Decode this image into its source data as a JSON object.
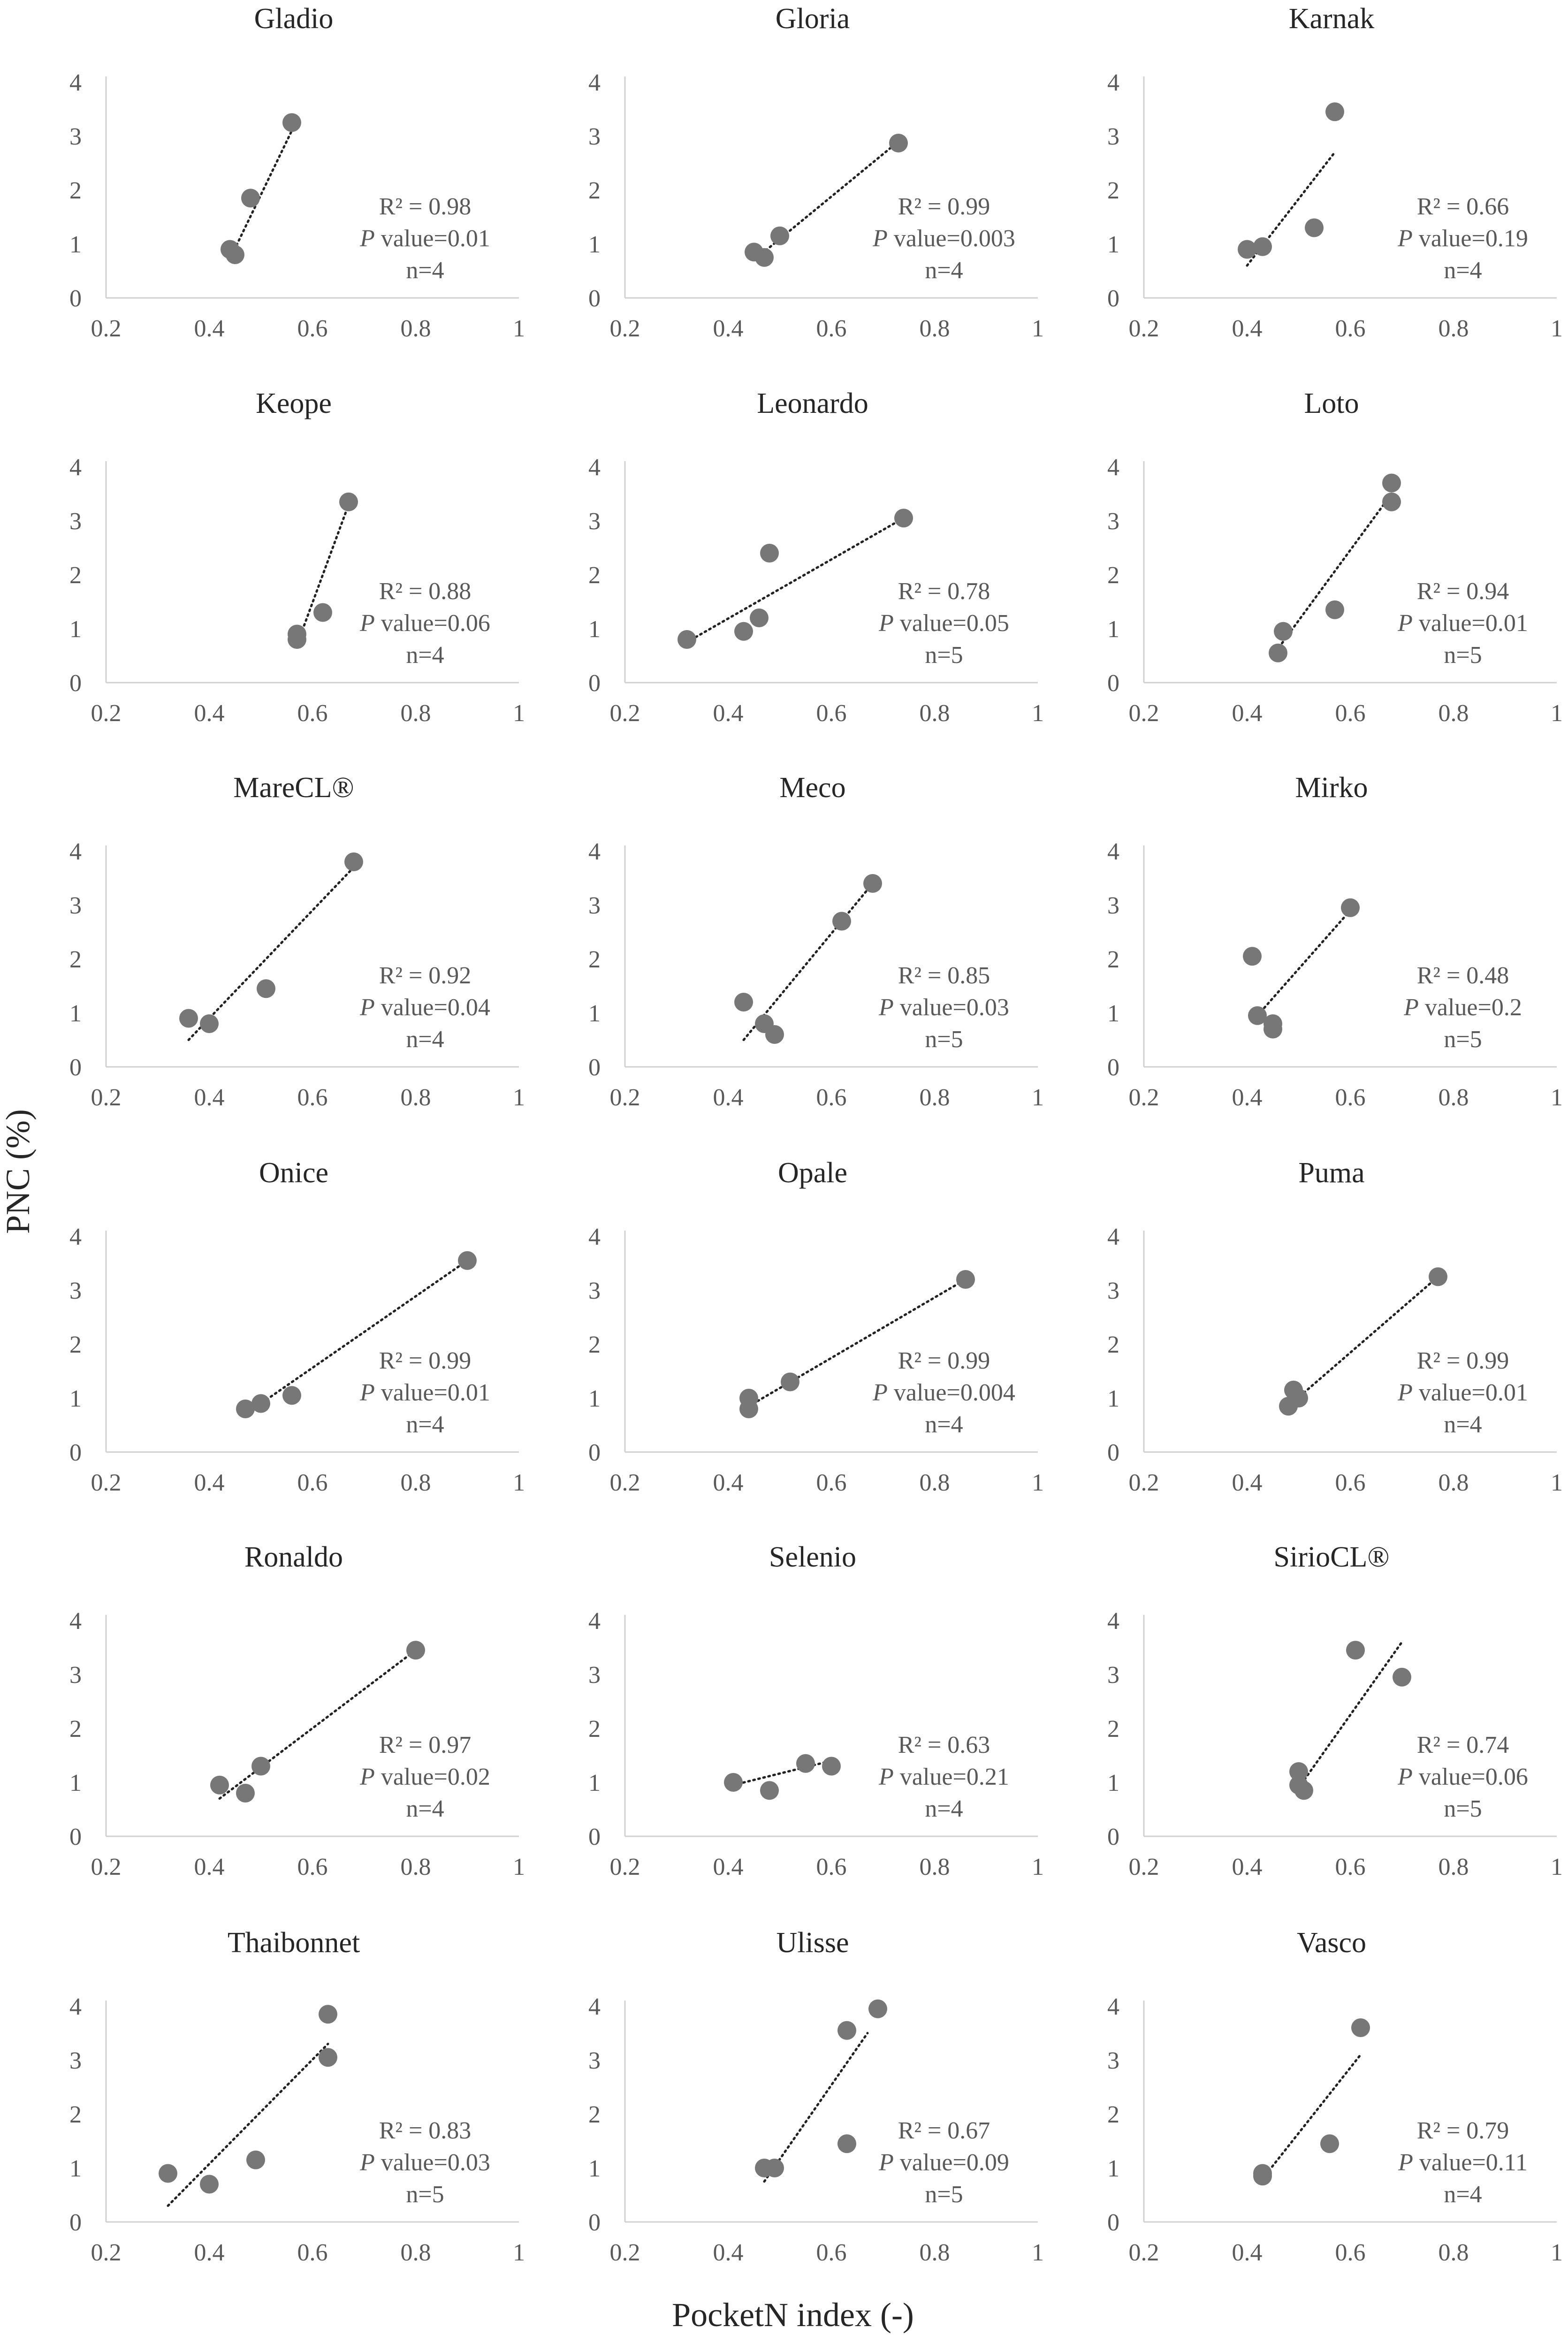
{
  "figure": {
    "y_axis_title": "PNC (%)",
    "x_axis_title": "PocketN index (-)"
  },
  "chart_data": [
    {
      "type": "scatter",
      "title": "Gladio",
      "x_ticks": [
        "0.2",
        "0.4",
        "0.6",
        "0.8",
        "1"
      ],
      "y_ticks": [
        "0",
        "1",
        "2",
        "3",
        "4"
      ],
      "xlim": [
        0.2,
        1.0
      ],
      "ylim": [
        0,
        4
      ],
      "series": [
        {
          "x": [
            0.56,
            0.48,
            0.44,
            0.45
          ],
          "y": [
            3.25,
            1.85,
            0.9,
            0.8
          ]
        }
      ],
      "trendline": {
        "x": [
          0.44,
          0.565
        ],
        "y": [
          0.72,
          3.2
        ],
        "style": "dotted"
      },
      "stats": {
        "r2": "R² = 0.98",
        "p_label": "P",
        "p_rest": " value=0.01",
        "n": "n=4"
      }
    },
    {
      "type": "scatter",
      "title": "Gloria",
      "x_ticks": [
        "0.2",
        "0.4",
        "0.6",
        "0.8",
        "1"
      ],
      "y_ticks": [
        "0",
        "1",
        "2",
        "3",
        "4"
      ],
      "xlim": [
        0.2,
        1.0
      ],
      "ylim": [
        0,
        4
      ],
      "series": [
        {
          "x": [
            0.73,
            0.5,
            0.45,
            0.47
          ],
          "y": [
            2.87,
            1.15,
            0.85,
            0.75
          ]
        }
      ],
      "trendline": {
        "x": [
          0.45,
          0.73
        ],
        "y": [
          0.7,
          2.9
        ],
        "style": "dotted"
      },
      "stats": {
        "r2": "R² = 0.99",
        "p_label": "P",
        "p_rest": " value=0.003",
        "n": "n=4"
      }
    },
    {
      "type": "scatter",
      "title": "Karnak",
      "x_ticks": [
        "0.2",
        "0.4",
        "0.6",
        "0.8",
        "1"
      ],
      "y_ticks": [
        "0",
        "1",
        "2",
        "3",
        "4"
      ],
      "xlim": [
        0.2,
        1.0
      ],
      "ylim": [
        0,
        4
      ],
      "series": [
        {
          "x": [
            0.57,
            0.53,
            0.43,
            0.4
          ],
          "y": [
            3.45,
            1.3,
            0.95,
            0.9
          ]
        }
      ],
      "trendline": {
        "x": [
          0.4,
          0.57
        ],
        "y": [
          0.6,
          2.7
        ],
        "style": "dotted"
      },
      "stats": {
        "r2": "R² = 0.66",
        "p_label": "P",
        "p_rest": " value=0.19",
        "n": "n=4"
      }
    },
    {
      "type": "scatter",
      "title": "Keope",
      "x_ticks": [
        "0.2",
        "0.4",
        "0.6",
        "0.8",
        "1"
      ],
      "y_ticks": [
        "0",
        "1",
        "2",
        "3",
        "4"
      ],
      "xlim": [
        0.2,
        1.0
      ],
      "ylim": [
        0,
        4
      ],
      "series": [
        {
          "x": [
            0.67,
            0.62,
            0.57,
            0.57
          ],
          "y": [
            3.35,
            1.3,
            0.9,
            0.8
          ]
        }
      ],
      "trendline": {
        "x": [
          0.57,
          0.67
        ],
        "y": [
          0.7,
          3.3
        ],
        "style": "dotted"
      },
      "stats": {
        "r2": "R² = 0.88",
        "p_label": "P",
        "p_rest": " value=0.06",
        "n": "n=4"
      }
    },
    {
      "type": "scatter",
      "title": "Leonardo",
      "x_ticks": [
        "0.2",
        "0.4",
        "0.6",
        "0.8",
        "1"
      ],
      "y_ticks": [
        "0",
        "1",
        "2",
        "3",
        "4"
      ],
      "xlim": [
        0.2,
        1.0
      ],
      "ylim": [
        0,
        4
      ],
      "series": [
        {
          "x": [
            0.74,
            0.48,
            0.46,
            0.43,
            0.32
          ],
          "y": [
            3.05,
            2.4,
            1.2,
            0.95,
            0.8
          ]
        }
      ],
      "trendline": {
        "x": [
          0.32,
          0.74
        ],
        "y": [
          0.75,
          3.05
        ],
        "style": "dotted"
      },
      "stats": {
        "r2": "R² = 0.78",
        "p_label": "P",
        "p_rest": " value=0.05",
        "n": "n=5"
      }
    },
    {
      "type": "scatter",
      "title": "Loto",
      "x_ticks": [
        "0.2",
        "0.4",
        "0.6",
        "0.8",
        "1"
      ],
      "y_ticks": [
        "0",
        "1",
        "2",
        "3",
        "4"
      ],
      "xlim": [
        0.2,
        1.0
      ],
      "ylim": [
        0,
        4
      ],
      "series": [
        {
          "x": [
            0.68,
            0.68,
            0.57,
            0.47,
            0.46
          ],
          "y": [
            3.7,
            3.35,
            1.35,
            0.95,
            0.55
          ]
        }
      ],
      "trendline": {
        "x": [
          0.45,
          0.68
        ],
        "y": [
          0.5,
          3.5
        ],
        "style": "dotted"
      },
      "stats": {
        "r2": "R² = 0.94",
        "p_label": "P",
        "p_rest": " value=0.01",
        "n": "n=5"
      }
    },
    {
      "type": "scatter",
      "title": "MareCL®",
      "x_ticks": [
        "0.2",
        "0.4",
        "0.6",
        "0.8",
        "1"
      ],
      "y_ticks": [
        "0",
        "1",
        "2",
        "3",
        "4"
      ],
      "xlim": [
        0.2,
        1.0
      ],
      "ylim": [
        0,
        4
      ],
      "series": [
        {
          "x": [
            0.68,
            0.51,
            0.36,
            0.4
          ],
          "y": [
            3.8,
            1.45,
            0.9,
            0.8
          ]
        }
      ],
      "trendline": {
        "x": [
          0.36,
          0.68
        ],
        "y": [
          0.5,
          3.7
        ],
        "style": "dotted"
      },
      "stats": {
        "r2": "R² = 0.92",
        "p_label": "P",
        "p_rest": " value=0.04",
        "n": "n=4"
      }
    },
    {
      "type": "scatter",
      "title": "Meco",
      "x_ticks": [
        "0.2",
        "0.4",
        "0.6",
        "0.8",
        "1"
      ],
      "y_ticks": [
        "0",
        "1",
        "2",
        "3",
        "4"
      ],
      "xlim": [
        0.2,
        1.0
      ],
      "ylim": [
        0,
        4
      ],
      "series": [
        {
          "x": [
            0.68,
            0.62,
            0.43,
            0.47,
            0.49
          ],
          "y": [
            3.4,
            2.7,
            1.2,
            0.8,
            0.6
          ]
        }
      ],
      "trendline": {
        "x": [
          0.43,
          0.68
        ],
        "y": [
          0.5,
          3.4
        ],
        "style": "dotted"
      },
      "stats": {
        "r2": "R² = 0.85",
        "p_label": "P",
        "p_rest": " value=0.03",
        "n": "n=5"
      }
    },
    {
      "type": "scatter",
      "title": "Mirko",
      "x_ticks": [
        "0.2",
        "0.4",
        "0.6",
        "0.8",
        "1"
      ],
      "y_ticks": [
        "0",
        "1",
        "2",
        "3",
        "4"
      ],
      "xlim": [
        0.2,
        1.0
      ],
      "ylim": [
        0,
        4
      ],
      "series": [
        {
          "x": [
            0.6,
            0.41,
            0.42,
            0.45,
            0.45
          ],
          "y": [
            2.95,
            2.05,
            0.95,
            0.8,
            0.7
          ]
        }
      ],
      "trendline": {
        "x": [
          0.42,
          0.6
        ],
        "y": [
          0.95,
          2.9
        ],
        "style": "dotted"
      },
      "stats": {
        "r2": "R² = 0.48",
        "p_label": "P",
        "p_rest": " value=0.2",
        "n": "n=5"
      }
    },
    {
      "type": "scatter",
      "title": "Onice",
      "x_ticks": [
        "0.2",
        "0.4",
        "0.6",
        "0.8",
        "1"
      ],
      "y_ticks": [
        "0",
        "1",
        "2",
        "3",
        "4"
      ],
      "xlim": [
        0.2,
        1.0
      ],
      "ylim": [
        0,
        4
      ],
      "series": [
        {
          "x": [
            0.9,
            0.56,
            0.5,
            0.47
          ],
          "y": [
            3.55,
            1.05,
            0.9,
            0.8
          ]
        }
      ],
      "trendline": {
        "x": [
          0.47,
          0.9
        ],
        "y": [
          0.7,
          3.55
        ],
        "style": "dotted"
      },
      "stats": {
        "r2": "R² = 0.99",
        "p_label": "P",
        "p_rest": " value=0.01",
        "n": "n=4"
      }
    },
    {
      "type": "scatter",
      "title": "Opale",
      "x_ticks": [
        "0.2",
        "0.4",
        "0.6",
        "0.8",
        "1"
      ],
      "y_ticks": [
        "0",
        "1",
        "2",
        "3",
        "4"
      ],
      "xlim": [
        0.2,
        1.0
      ],
      "ylim": [
        0,
        4
      ],
      "series": [
        {
          "x": [
            0.86,
            0.52,
            0.44,
            0.44
          ],
          "y": [
            3.2,
            1.3,
            1.0,
            0.8
          ]
        }
      ],
      "trendline": {
        "x": [
          0.44,
          0.86
        ],
        "y": [
          0.85,
          3.2
        ],
        "style": "dotted"
      },
      "stats": {
        "r2": "R² = 0.99",
        "p_label": "P",
        "p_rest": " value=0.004",
        "n": "n=4"
      }
    },
    {
      "type": "scatter",
      "title": "Puma",
      "x_ticks": [
        "0.2",
        "0.4",
        "0.6",
        "0.8",
        "1"
      ],
      "y_ticks": [
        "0",
        "1",
        "2",
        "3",
        "4"
      ],
      "xlim": [
        0.2,
        1.0
      ],
      "ylim": [
        0,
        4
      ],
      "series": [
        {
          "x": [
            0.77,
            0.49,
            0.5,
            0.48
          ],
          "y": [
            3.25,
            1.15,
            1.0,
            0.85
          ]
        }
      ],
      "trendline": {
        "x": [
          0.48,
          0.77
        ],
        "y": [
          0.85,
          3.25
        ],
        "style": "dotted"
      },
      "stats": {
        "r2": "R² = 0.99",
        "p_label": "P",
        "p_rest": " value=0.01",
        "n": "n=4"
      }
    },
    {
      "type": "scatter",
      "title": "Ronaldo",
      "x_ticks": [
        "0.2",
        "0.4",
        "0.6",
        "0.8",
        "1"
      ],
      "y_ticks": [
        "0",
        "1",
        "2",
        "3",
        "4"
      ],
      "xlim": [
        0.2,
        1.0
      ],
      "ylim": [
        0,
        4
      ],
      "series": [
        {
          "x": [
            0.8,
            0.5,
            0.42,
            0.47
          ],
          "y": [
            3.45,
            1.3,
            0.95,
            0.8
          ]
        }
      ],
      "trendline": {
        "x": [
          0.42,
          0.8
        ],
        "y": [
          0.7,
          3.45
        ],
        "style": "dotted"
      },
      "stats": {
        "r2": "R² = 0.97",
        "p_label": "P",
        "p_rest": " value=0.02",
        "n": "n=4"
      }
    },
    {
      "type": "scatter",
      "title": "Selenio",
      "x_ticks": [
        "0.2",
        "0.4",
        "0.6",
        "0.8",
        "1"
      ],
      "y_ticks": [
        "0",
        "1",
        "2",
        "3",
        "4"
      ],
      "xlim": [
        0.2,
        1.0
      ],
      "ylim": [
        0,
        4
      ],
      "series": [
        {
          "x": [
            0.55,
            0.6,
            0.41,
            0.48
          ],
          "y": [
            1.35,
            1.3,
            1.0,
            0.85
          ]
        }
      ],
      "trendline": {
        "x": [
          0.41,
          0.6
        ],
        "y": [
          0.95,
          1.4
        ],
        "style": "dotted"
      },
      "stats": {
        "r2": "R² = 0.63",
        "p_label": "P",
        "p_rest": " value=0.21",
        "n": "n=4"
      }
    },
    {
      "type": "scatter",
      "title": "SirioCL®",
      "x_ticks": [
        "0.2",
        "0.4",
        "0.6",
        "0.8",
        "1"
      ],
      "y_ticks": [
        "0",
        "1",
        "2",
        "3",
        "4"
      ],
      "xlim": [
        0.2,
        1.0
      ],
      "ylim": [
        0,
        4
      ],
      "series": [
        {
          "x": [
            0.61,
            0.7,
            0.5,
            0.5,
            0.51
          ],
          "y": [
            3.45,
            2.95,
            1.2,
            0.95,
            0.85
          ]
        }
      ],
      "trendline": {
        "x": [
          0.5,
          0.7
        ],
        "y": [
          0.9,
          3.6
        ],
        "style": "dotted"
      },
      "stats": {
        "r2": "R² = 0.74",
        "p_label": "P",
        "p_rest": " value=0.06",
        "n": "n=5"
      }
    },
    {
      "type": "scatter",
      "title": "Thaibonnet",
      "x_ticks": [
        "0.2",
        "0.4",
        "0.6",
        "0.8",
        "1"
      ],
      "y_ticks": [
        "0",
        "1",
        "2",
        "3",
        "4"
      ],
      "xlim": [
        0.2,
        1.0
      ],
      "ylim": [
        0,
        4
      ],
      "series": [
        {
          "x": [
            0.63,
            0.63,
            0.49,
            0.32,
            0.4
          ],
          "y": [
            3.85,
            3.05,
            1.15,
            0.9,
            0.7
          ]
        }
      ],
      "trendline": {
        "x": [
          0.32,
          0.63
        ],
        "y": [
          0.3,
          3.3
        ],
        "style": "dotted"
      },
      "stats": {
        "r2": "R² = 0.83",
        "p_label": "P",
        "p_rest": " value=0.03",
        "n": "n=5"
      }
    },
    {
      "type": "scatter",
      "title": "Ulisse",
      "x_ticks": [
        "0.2",
        "0.4",
        "0.6",
        "0.8",
        "1"
      ],
      "y_ticks": [
        "0",
        "1",
        "2",
        "3",
        "4"
      ],
      "xlim": [
        0.2,
        1.0
      ],
      "ylim": [
        0,
        4
      ],
      "series": [
        {
          "x": [
            0.69,
            0.63,
            0.63,
            0.47,
            0.49
          ],
          "y": [
            3.95,
            3.55,
            1.45,
            1.0,
            1.0
          ]
        }
      ],
      "trendline": {
        "x": [
          0.47,
          0.67
        ],
        "y": [
          0.75,
          3.5
        ],
        "style": "dotted"
      },
      "stats": {
        "r2": "R² = 0.67",
        "p_label": "P",
        "p_rest": " value=0.09",
        "n": "n=5"
      }
    },
    {
      "type": "scatter",
      "title": "Vasco",
      "x_ticks": [
        "0.2",
        "0.4",
        "0.6",
        "0.8",
        "1"
      ],
      "y_ticks": [
        "0",
        "1",
        "2",
        "3",
        "4"
      ],
      "xlim": [
        0.2,
        1.0
      ],
      "ylim": [
        0,
        4
      ],
      "series": [
        {
          "x": [
            0.62,
            0.56,
            0.43,
            0.43
          ],
          "y": [
            3.6,
            1.45,
            0.9,
            0.85
          ]
        }
      ],
      "trendline": {
        "x": [
          0.43,
          0.62
        ],
        "y": [
          0.8,
          3.1
        ],
        "style": "dotted"
      },
      "stats": {
        "r2": "R² = 0.79",
        "p_label": "P",
        "p_rest": " value=0.11",
        "n": "n=4"
      }
    }
  ]
}
